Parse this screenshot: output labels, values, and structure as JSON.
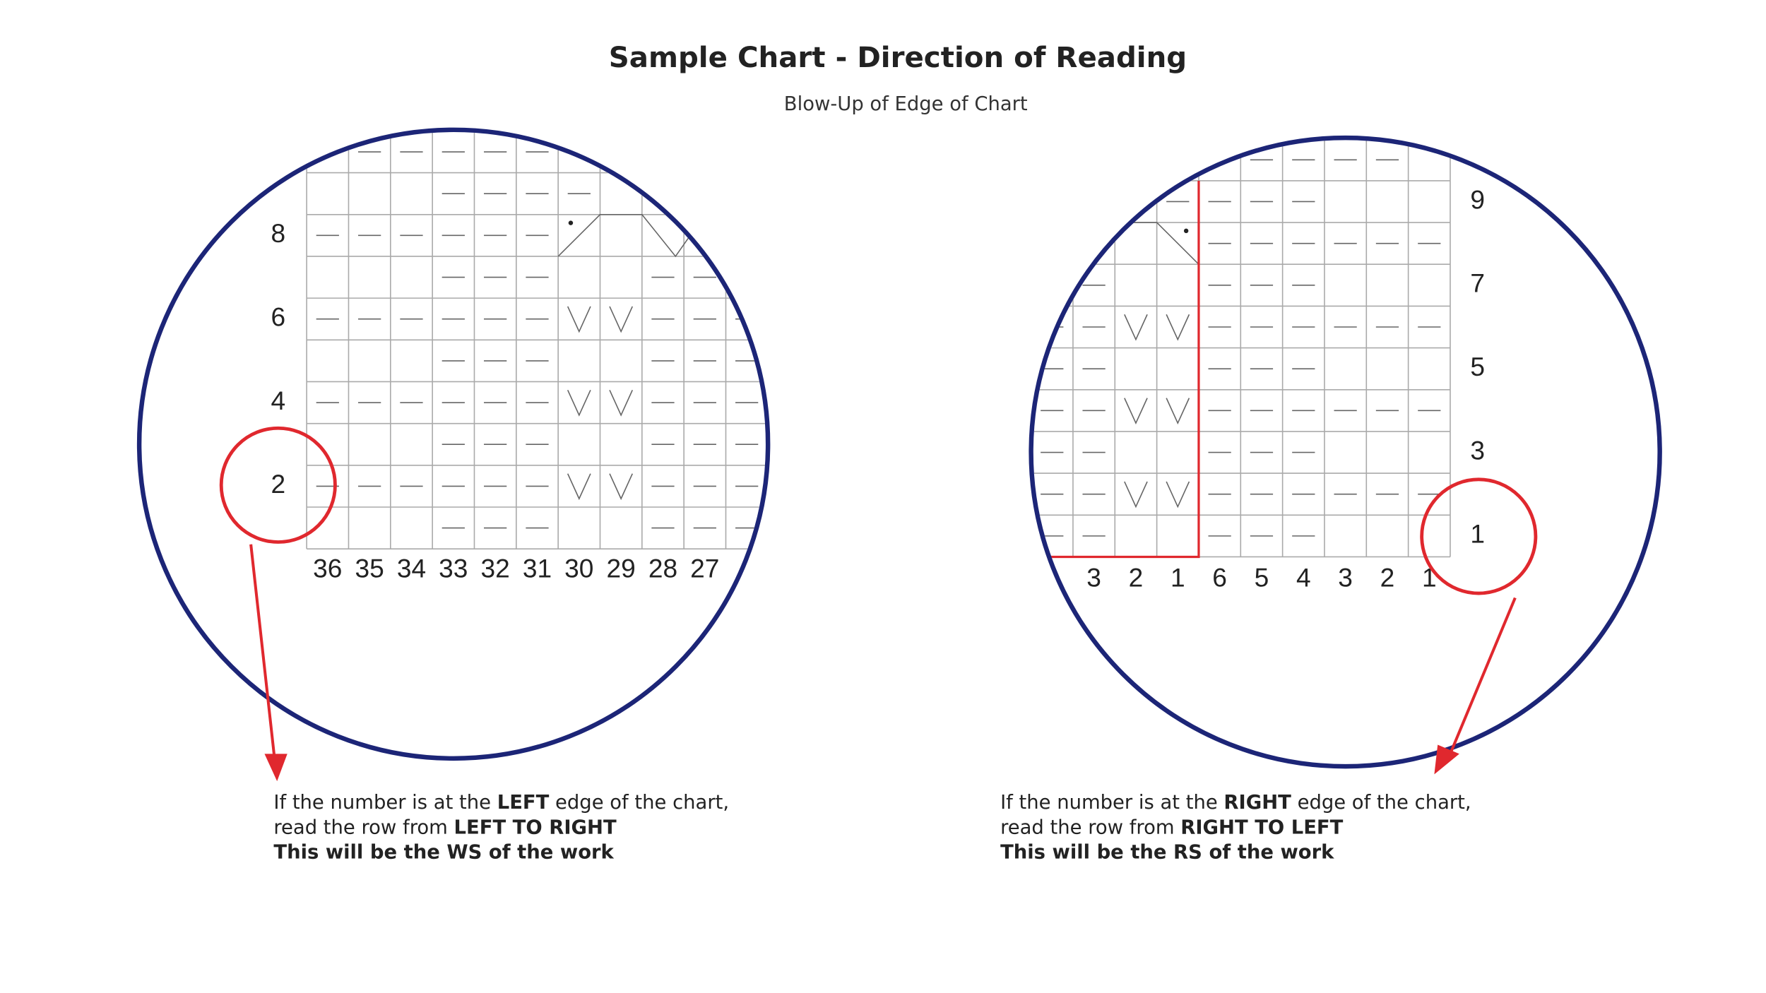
{
  "header": {
    "title": "Sample Chart - Direction of Reading",
    "subtitle": "Blow-Up of Edge of Chart"
  },
  "left": {
    "row_numbers": [
      "8",
      "6",
      "4",
      "2"
    ],
    "column_numbers": [
      "36",
      "35",
      "34",
      "33",
      "32",
      "31",
      "30",
      "29",
      "28",
      "27"
    ],
    "caption": [
      [
        "If the number is at the ",
        "LEFT",
        " edge of the chart,"
      ],
      [
        "read the row from ",
        "LEFT TO RIGHT"
      ],
      [
        "This will be the WS of the work"
      ]
    ]
  },
  "right": {
    "row_numbers": [
      "9",
      "7",
      "5",
      "3",
      "1"
    ],
    "column_numbers": [
      "3",
      "2",
      "1",
      "6",
      "5",
      "4",
      "3",
      "2",
      "1"
    ],
    "caption": [
      [
        "If the number is at the ",
        "RIGHT",
        " edge of the chart,"
      ],
      [
        "read the row from ",
        "RIGHT TO LEFT"
      ],
      [
        "This will be the RS of the work"
      ]
    ]
  }
}
